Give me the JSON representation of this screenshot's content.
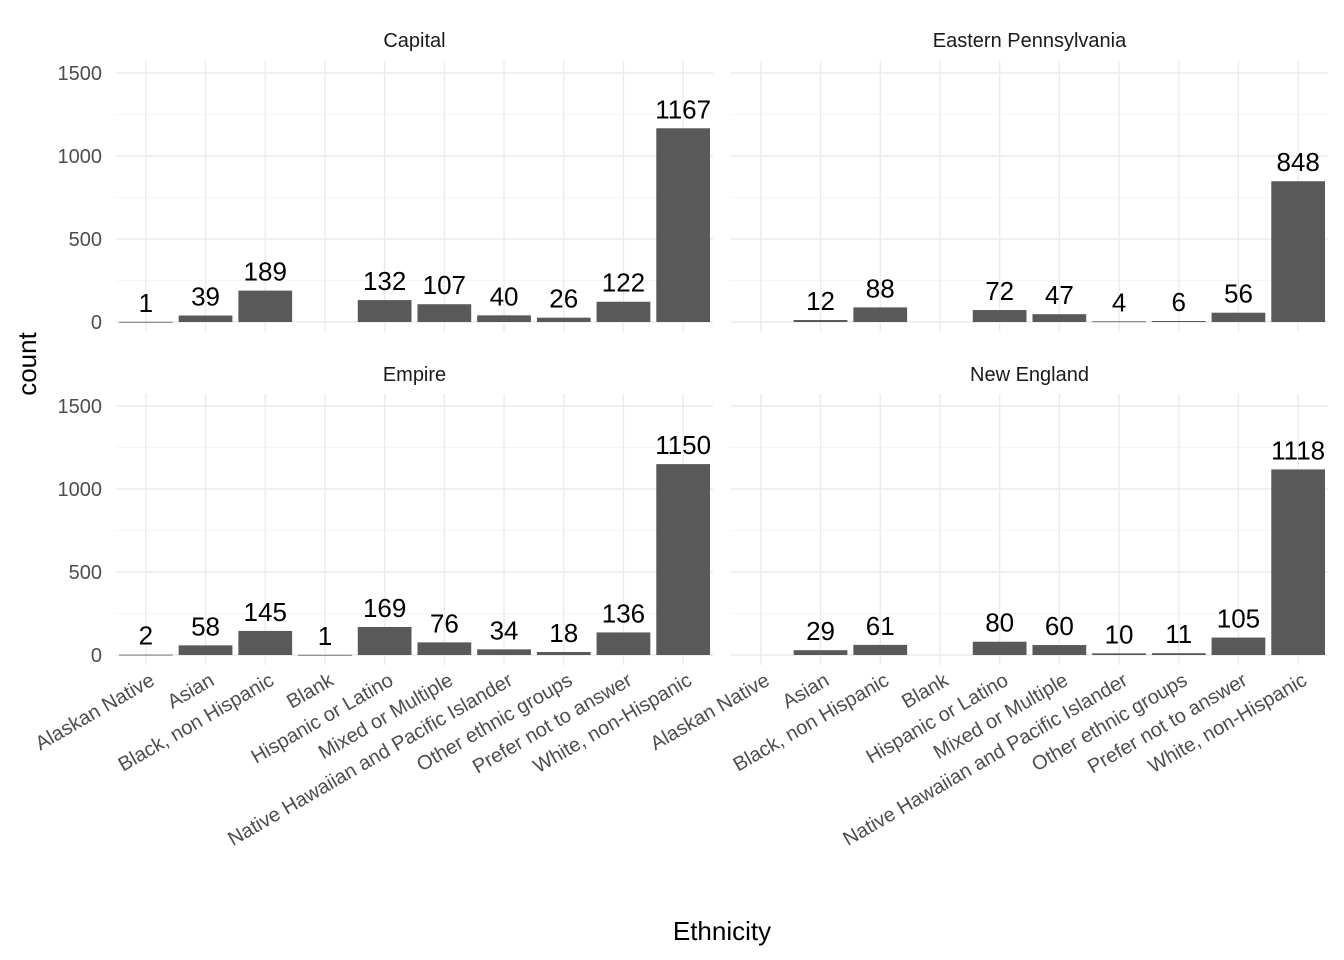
{
  "chart_data": {
    "type": "bar",
    "layout": "faceted 2x2",
    "xlabel": "Ethnicity",
    "ylabel": "count",
    "ylim": [
      0,
      1500
    ],
    "yticks": [
      0,
      500,
      1000,
      1500
    ],
    "grid": true,
    "bar_color": "#595959",
    "categories": [
      "Alaskan Native",
      "Asian",
      "Black, non Hispanic",
      "Blank",
      "Hispanic or Latino",
      "Mixed or Multiple",
      "Native Hawaiian and Pacific Islander",
      "Other ethnic groups",
      "Prefer not to answer",
      "White, non-Hispanic"
    ],
    "facets": [
      {
        "name": "Capital",
        "values": [
          1,
          39,
          189,
          null,
          132,
          107,
          40,
          26,
          122,
          1167
        ]
      },
      {
        "name": "Eastern Pennsylvania",
        "values": [
          null,
          12,
          88,
          null,
          72,
          47,
          4,
          6,
          56,
          848
        ]
      },
      {
        "name": "Empire",
        "values": [
          2,
          58,
          145,
          1,
          169,
          76,
          34,
          18,
          136,
          1150
        ]
      },
      {
        "name": "New England",
        "values": [
          null,
          29,
          61,
          null,
          80,
          60,
          10,
          11,
          105,
          1118
        ]
      }
    ]
  }
}
